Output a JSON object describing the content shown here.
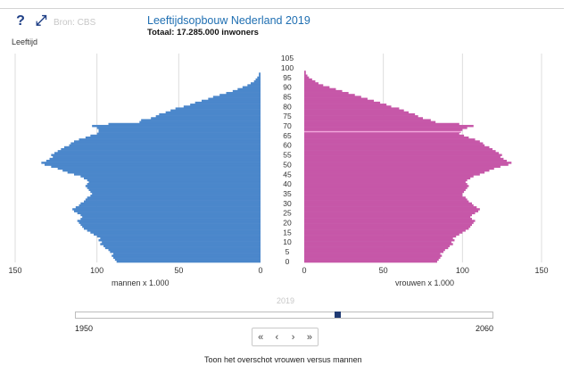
{
  "header": {
    "help_icon": "question-icon",
    "help_glyph": "?",
    "expand_icon": "expand-icon",
    "expand_glyph": "⤢",
    "source": "Bron: CBS",
    "title": "Leeftijdsopbouw Nederland 2019",
    "subtitle": "Totaal: 17.285.000 inwoners"
  },
  "axis": {
    "y_label": "Leeftijd",
    "men_label": "mannen x 1.000",
    "women_label": "vrouwen x 1.000"
  },
  "slider": {
    "current_year": "2019",
    "start_year": "1950",
    "end_year": "2060",
    "position": 0.626
  },
  "controls": {
    "first": "«",
    "prev": "‹",
    "next": "›",
    "last": "»"
  },
  "toggle_text": "Toon het overschot vrouwen versus mannen",
  "colors": {
    "men": "#4b87cb",
    "women": "#c657a8",
    "highlight": "#f2a6dc"
  },
  "chart_data": {
    "type": "bar",
    "orientation": "horizontal-population-pyramid",
    "age_ticks": [
      0,
      5,
      10,
      15,
      20,
      25,
      30,
      35,
      40,
      45,
      50,
      55,
      60,
      65,
      70,
      75,
      80,
      85,
      90,
      95,
      100,
      105
    ],
    "value_ticks": [
      150,
      100,
      50,
      0
    ],
    "xlim": [
      0,
      150
    ],
    "ylim": [
      0,
      105
    ],
    "highlight_age": 67,
    "series": [
      {
        "name": "mannen x 1.000",
        "ages": [
          0,
          1,
          2,
          3,
          4,
          5,
          6,
          7,
          8,
          9,
          10,
          11,
          12,
          13,
          14,
          15,
          16,
          17,
          18,
          19,
          20,
          21,
          22,
          23,
          24,
          25,
          26,
          27,
          28,
          29,
          30,
          31,
          32,
          33,
          34,
          35,
          36,
          37,
          38,
          39,
          40,
          41,
          42,
          43,
          44,
          45,
          46,
          47,
          48,
          49,
          50,
          51,
          52,
          53,
          54,
          55,
          56,
          57,
          58,
          59,
          60,
          61,
          62,
          63,
          64,
          65,
          66,
          67,
          68,
          69,
          70,
          71,
          72,
          73,
          74,
          75,
          76,
          77,
          78,
          79,
          80,
          81,
          82,
          83,
          84,
          85,
          86,
          87,
          88,
          89,
          90,
          91,
          92,
          93,
          94,
          95,
          96,
          97,
          98,
          99,
          100,
          101,
          102,
          103,
          104,
          105
        ],
        "values": [
          88,
          89,
          90,
          91,
          90,
          92,
          93,
          95,
          96,
          98,
          97,
          99,
          98,
          100,
          102,
          104,
          106,
          108,
          109,
          110,
          111,
          112,
          110,
          109,
          110,
          112,
          114,
          115,
          113,
          111,
          110,
          108,
          107,
          106,
          104,
          103,
          104,
          105,
          106,
          107,
          106,
          105,
          106,
          108,
          110,
          114,
          118,
          121,
          124,
          128,
          132,
          134,
          131,
          129,
          127,
          128,
          126,
          124,
          122,
          120,
          117,
          116,
          114,
          111,
          107,
          104,
          100,
          99,
          99,
          100,
          103,
          93,
          74,
          73,
          67,
          64,
          62,
          58,
          55,
          52,
          47,
          43,
          40,
          36,
          32,
          29,
          25,
          21,
          17,
          14,
          11,
          8,
          6,
          4,
          3,
          2,
          1,
          1,
          0,
          0,
          0,
          0,
          0,
          0,
          0,
          0
        ]
      },
      {
        "name": "vrouwen x 1.000",
        "ages": [
          0,
          1,
          2,
          3,
          4,
          5,
          6,
          7,
          8,
          9,
          10,
          11,
          12,
          13,
          14,
          15,
          16,
          17,
          18,
          19,
          20,
          21,
          22,
          23,
          24,
          25,
          26,
          27,
          28,
          29,
          30,
          31,
          32,
          33,
          34,
          35,
          36,
          37,
          38,
          39,
          40,
          41,
          42,
          43,
          44,
          45,
          46,
          47,
          48,
          49,
          50,
          51,
          52,
          53,
          54,
          55,
          56,
          57,
          58,
          59,
          60,
          61,
          62,
          63,
          64,
          65,
          66,
          67,
          68,
          69,
          70,
          71,
          72,
          73,
          74,
          75,
          76,
          77,
          78,
          79,
          80,
          81,
          82,
          83,
          84,
          85,
          86,
          87,
          88,
          89,
          90,
          91,
          92,
          93,
          94,
          95,
          96,
          97,
          98,
          99,
          100,
          101,
          102,
          103,
          104,
          105
        ],
        "values": [
          84,
          85,
          86,
          87,
          86,
          88,
          89,
          91,
          92,
          94,
          93,
          95,
          94,
          96,
          98,
          100,
          102,
          104,
          105,
          106,
          107,
          108,
          106,
          105,
          106,
          108,
          110,
          111,
          109,
          107,
          106,
          104,
          103,
          102,
          100,
          100,
          101,
          102,
          103,
          104,
          103,
          102,
          103,
          105,
          107,
          111,
          114,
          117,
          120,
          124,
          129,
          131,
          128,
          126,
          124,
          125,
          123,
          121,
          119,
          117,
          114,
          113,
          111,
          108,
          104,
          101,
          98,
          99,
          100,
          103,
          107,
          98,
          83,
          80,
          75,
          72,
          70,
          66,
          63,
          60,
          55,
          52,
          48,
          44,
          40,
          36,
          32,
          28,
          24,
          20,
          16,
          12,
          9,
          7,
          5,
          3,
          2,
          1,
          1,
          0,
          0,
          0,
          0,
          0,
          0,
          0
        ]
      }
    ]
  }
}
